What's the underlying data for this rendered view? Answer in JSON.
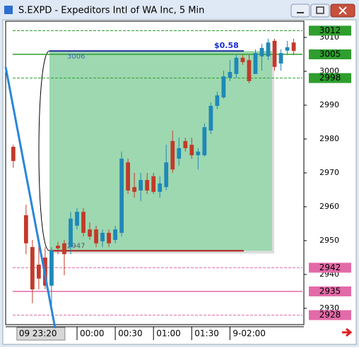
{
  "window_title": "S.EXPD - Expeditors Intl of WA Inc, 5 Min",
  "chart_data": {
    "type": "candlestick",
    "x": [
      0,
      2,
      3,
      4,
      5,
      6,
      7,
      8,
      9,
      10,
      11,
      12,
      13,
      14,
      15,
      16,
      17,
      18,
      19,
      20,
      21,
      22,
      23,
      24,
      25,
      26,
      27,
      28,
      29,
      30,
      31,
      32,
      33,
      34,
      35,
      36,
      37,
      38,
      39,
      40,
      41,
      42,
      43,
      44
    ],
    "open": [
      2977.7,
      2957.5,
      2948.1,
      2942.9,
      2945,
      2936.7,
      2948.5,
      2949.2,
      2948.1,
      2954.4,
      2958.5,
      2953.3,
      2953.3,
      2949.8,
      2952.3,
      2950.2,
      2952.3,
      2973.1,
      2965.8,
      2964.8,
      2967.9,
      2969,
      2964.4,
      2965.8,
      2979.4,
      2974.2,
      2979.4,
      2978.3,
      2975.2,
      2975.2,
      2982.5,
      2989.8,
      2992.3,
      2998.1,
      2999.2,
      3004,
      3003.3,
      2999.2,
      3004.4,
      3004.4,
      3009,
      3002.3,
      3006.1,
      3008.5
    ],
    "high": [
      2978.3,
      2960.6,
      2950.2,
      2949.2,
      2948.1,
      2948.1,
      2949.6,
      2950.2,
      2958.5,
      2959.6,
      2959.6,
      2955.4,
      2954.4,
      2953.3,
      2953.3,
      2954.4,
      2976.3,
      2974.2,
      2970,
      2970,
      2970,
      2970,
      2969,
      2978.3,
      2982.5,
      2980.4,
      2980.4,
      2980.4,
      2977.3,
      2984.6,
      2990.8,
      2994,
      3000.2,
      3003.3,
      3004.8,
      3004.8,
      3004.8,
      3006.5,
      3008.1,
      3009.6,
      3009.6,
      3006.5,
      3009,
      3009.6
    ],
    "low": [
      2971.5,
      2946,
      2931.5,
      2935.6,
      2935.6,
      2930.4,
      2946,
      2939.8,
      2946,
      2953.3,
      2951.2,
      2950.2,
      2948.1,
      2948.1,
      2948.1,
      2949.2,
      2951.2,
      2963.8,
      2962.7,
      2961.7,
      2963.8,
      2963.8,
      2962.7,
      2964.8,
      2970,
      2972.1,
      2976.3,
      2974.2,
      2971,
      2974.8,
      2981.5,
      2988.8,
      2991.9,
      2997.1,
      2998.1,
      3001.9,
      2996.5,
      2999.2,
      3000.2,
      3003.3,
      3000.2,
      3000.2,
      3004.8,
      3004.8
    ],
    "close": [
      2973.5,
      2949.2,
      2935.6,
      2938.8,
      2936.7,
      2947.1,
      2947.7,
      2946,
      2956.5,
      2958.5,
      2952.3,
      2951.2,
      2949.2,
      2952.3,
      2949.2,
      2953.3,
      2974.2,
      2964.8,
      2964.4,
      2967.9,
      2964.8,
      2964.4,
      2966.9,
      2973.1,
      2971,
      2977.3,
      2977.3,
      2975.2,
      2976.3,
      2983.5,
      2989.8,
      2992.9,
      2998.5,
      2999.8,
      3004,
      3002.7,
      2997.1,
      3005.4,
      3006.9,
      3008.5,
      3001.3,
      3005.4,
      3007.1,
      3006
    ],
    "up_color": "#1f88b8",
    "down_color": "#c23a2a",
    "xlim": [
      -1.2,
      45.6
    ],
    "xticks": [
      {
        "value": 2,
        "label": "09 23:20"
      },
      {
        "value": 10,
        "label": "00:00"
      },
      {
        "value": 16,
        "label": "00:30"
      },
      {
        "value": 22,
        "label": "01:00"
      },
      {
        "value": 28,
        "label": "01:30"
      },
      {
        "value": 34,
        "label": "9-02:00"
      }
    ],
    "ylim": [
      2925.2,
      3014.8
    ],
    "yticks": [
      2930,
      2940,
      2950,
      2960,
      2970,
      2980,
      2990,
      3000,
      3010
    ],
    "price_levels": [
      {
        "value": 3012,
        "color": "#2e9e2e",
        "style": "dashed"
      },
      {
        "value": 3005,
        "color": "#2e9e2e",
        "style": "solid"
      },
      {
        "value": 2998,
        "color": "#2e9e2e",
        "style": "dashed"
      },
      {
        "value": 2942,
        "color": "#e36aa8",
        "style": "dashed"
      },
      {
        "value": 2935,
        "color": "#e36aa8",
        "style": "solid"
      },
      {
        "value": 2928,
        "color": "#e36aa8",
        "style": "dashed"
      }
    ],
    "measure": {
      "top": 3006,
      "bottom": 2947,
      "change_label": "$0.58"
    }
  }
}
